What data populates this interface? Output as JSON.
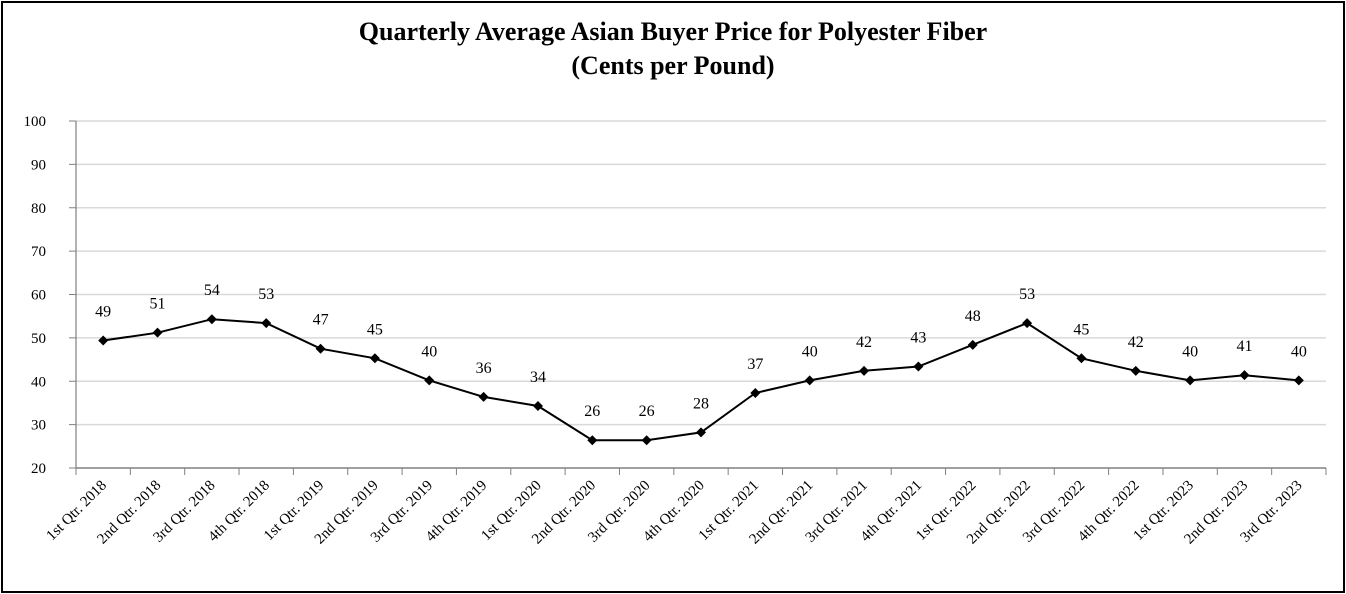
{
  "chart_data": {
    "type": "line",
    "title": "Quarterly Average Asian Buyer Price for Polyester Fiber",
    "subtitle": "(Cents per Pound)",
    "xlabel": "",
    "ylabel": "",
    "ylim": [
      20,
      100
    ],
    "yticks": [
      20,
      30,
      40,
      50,
      60,
      70,
      80,
      90,
      100
    ],
    "grid": true,
    "legend": "none",
    "categories": [
      "1st Qtr. 2018",
      "2nd Qtr. 2018",
      "3rd Qtr. 2018",
      "4th Qtr. 2018",
      "1st Qtr. 2019",
      "2nd Qtr. 2019",
      "3rd Qtr. 2019",
      "4th Qtr. 2019",
      "1st Qtr. 2020",
      "2nd Qtr. 2020",
      "3rd Qtr. 2020",
      "4th Qtr. 2020",
      "1st Qtr. 2021",
      "2nd Qtr. 2021",
      "3rd Qtr. 2021",
      "4th Qtr. 2021",
      "1st Qtr. 2022",
      "2nd Qtr. 2022",
      "3rd Qtr. 2022",
      "4th Qtr. 2022",
      "1st Qtr. 2023",
      "2nd Qtr. 2023",
      "3rd Qtr. 2023"
    ],
    "values": [
      49.4,
      51.2,
      54.3,
      53.4,
      47.5,
      45.3,
      40.2,
      36.4,
      34.3,
      26.4,
      26.4,
      28.2,
      37.3,
      40.2,
      42.4,
      43.4,
      48.4,
      53.4,
      45.3,
      42.4,
      40.2,
      41.4,
      40.2
    ],
    "data_labels": [
      "49",
      "51",
      "54",
      "53",
      "47",
      "45",
      "40",
      "36",
      "34",
      "26",
      "26",
      "28",
      "37",
      "40",
      "42",
      "43",
      "48",
      "53",
      "45",
      "42",
      "40",
      "41",
      "40"
    ],
    "colors": {
      "line": "#000000",
      "grid": "#d9d9d9",
      "axis": "#808080"
    }
  }
}
